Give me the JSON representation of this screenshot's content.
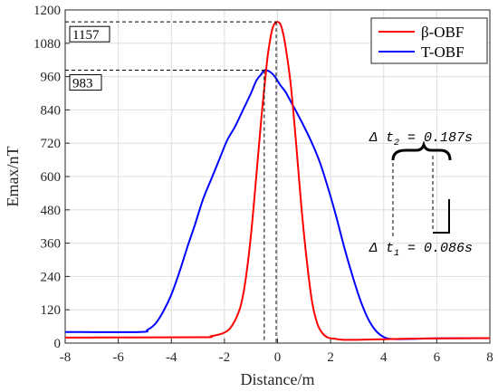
{
  "chart_data": {
    "type": "line",
    "xlabel": "Distance/m",
    "ylabel": "Emax/nT",
    "xlim": [
      -8,
      8
    ],
    "ylim": [
      0,
      1200
    ],
    "xticks": [
      -8,
      -6,
      -4,
      -2,
      0,
      2,
      4,
      6,
      8
    ],
    "yticks": [
      0,
      120,
      240,
      360,
      480,
      600,
      720,
      840,
      960,
      1080,
      1200
    ],
    "grid": true,
    "legend_position": "top-right",
    "series": [
      {
        "name": "β-OBF",
        "color": "#ff0000",
        "x": [
          -8,
          -3,
          -2.5,
          -2,
          -1.7,
          -1.4,
          -1.2,
          -1.0,
          -0.8,
          -0.6,
          -0.4,
          -0.3,
          -0.2,
          -0.1,
          0,
          0.1,
          0.2,
          0.3,
          0.5,
          0.7,
          0.9,
          1.1,
          1.3,
          1.5,
          1.7,
          1.9,
          2.2,
          2.5,
          3,
          4,
          5,
          6,
          8
        ],
        "y": [
          20,
          21,
          25,
          38,
          65,
          130,
          230,
          390,
          600,
          820,
          1010,
          1080,
          1130,
          1152,
          1157,
          1150,
          1120,
          1070,
          930,
          720,
          490,
          300,
          150,
          70,
          35,
          20,
          15,
          12,
          12,
          14,
          16,
          17,
          18
        ]
      },
      {
        "name": "T-OBF",
        "color": "#0000ff",
        "x": [
          -8,
          -5.2,
          -4.9,
          -4.6,
          -4.3,
          -4,
          -3.7,
          -3.4,
          -3.1,
          -2.8,
          -2.5,
          -2.2,
          -1.9,
          -1.6,
          -1.3,
          -1.0,
          -0.8,
          -0.6,
          -0.5,
          -0.3,
          -0.1,
          0.1,
          0.3,
          0.5,
          0.7,
          1.0,
          1.3,
          1.6,
          1.9,
          2.2,
          2.5,
          2.8,
          3.1,
          3.4,
          3.7,
          4.0,
          4.3,
          5,
          6,
          8
        ],
        "y": [
          40,
          40,
          48,
          70,
          115,
          175,
          255,
          345,
          430,
          520,
          590,
          660,
          730,
          780,
          840,
          900,
          945,
          970,
          983,
          978,
          960,
          930,
          905,
          870,
          835,
          780,
          720,
          650,
          560,
          460,
          350,
          250,
          160,
          90,
          45,
          22,
          15,
          15,
          17,
          18
        ]
      }
    ],
    "annotations": {
      "peak_labels": [
        {
          "text": "1157",
          "value": 1157,
          "x_peak": -0.05
        },
        {
          "text": "983",
          "value": 983,
          "x_peak": -0.5
        }
      ],
      "delta_t2": {
        "text": "Δ t₂ = 0.187s",
        "sym": "Δ t",
        "sub": "2",
        "rest": " =  0.187s"
      },
      "delta_t1": {
        "text": "Δ t₁ = 0.086s",
        "sym": "Δ t",
        "sub": "1",
        "rest": " =  0.086s"
      }
    }
  }
}
